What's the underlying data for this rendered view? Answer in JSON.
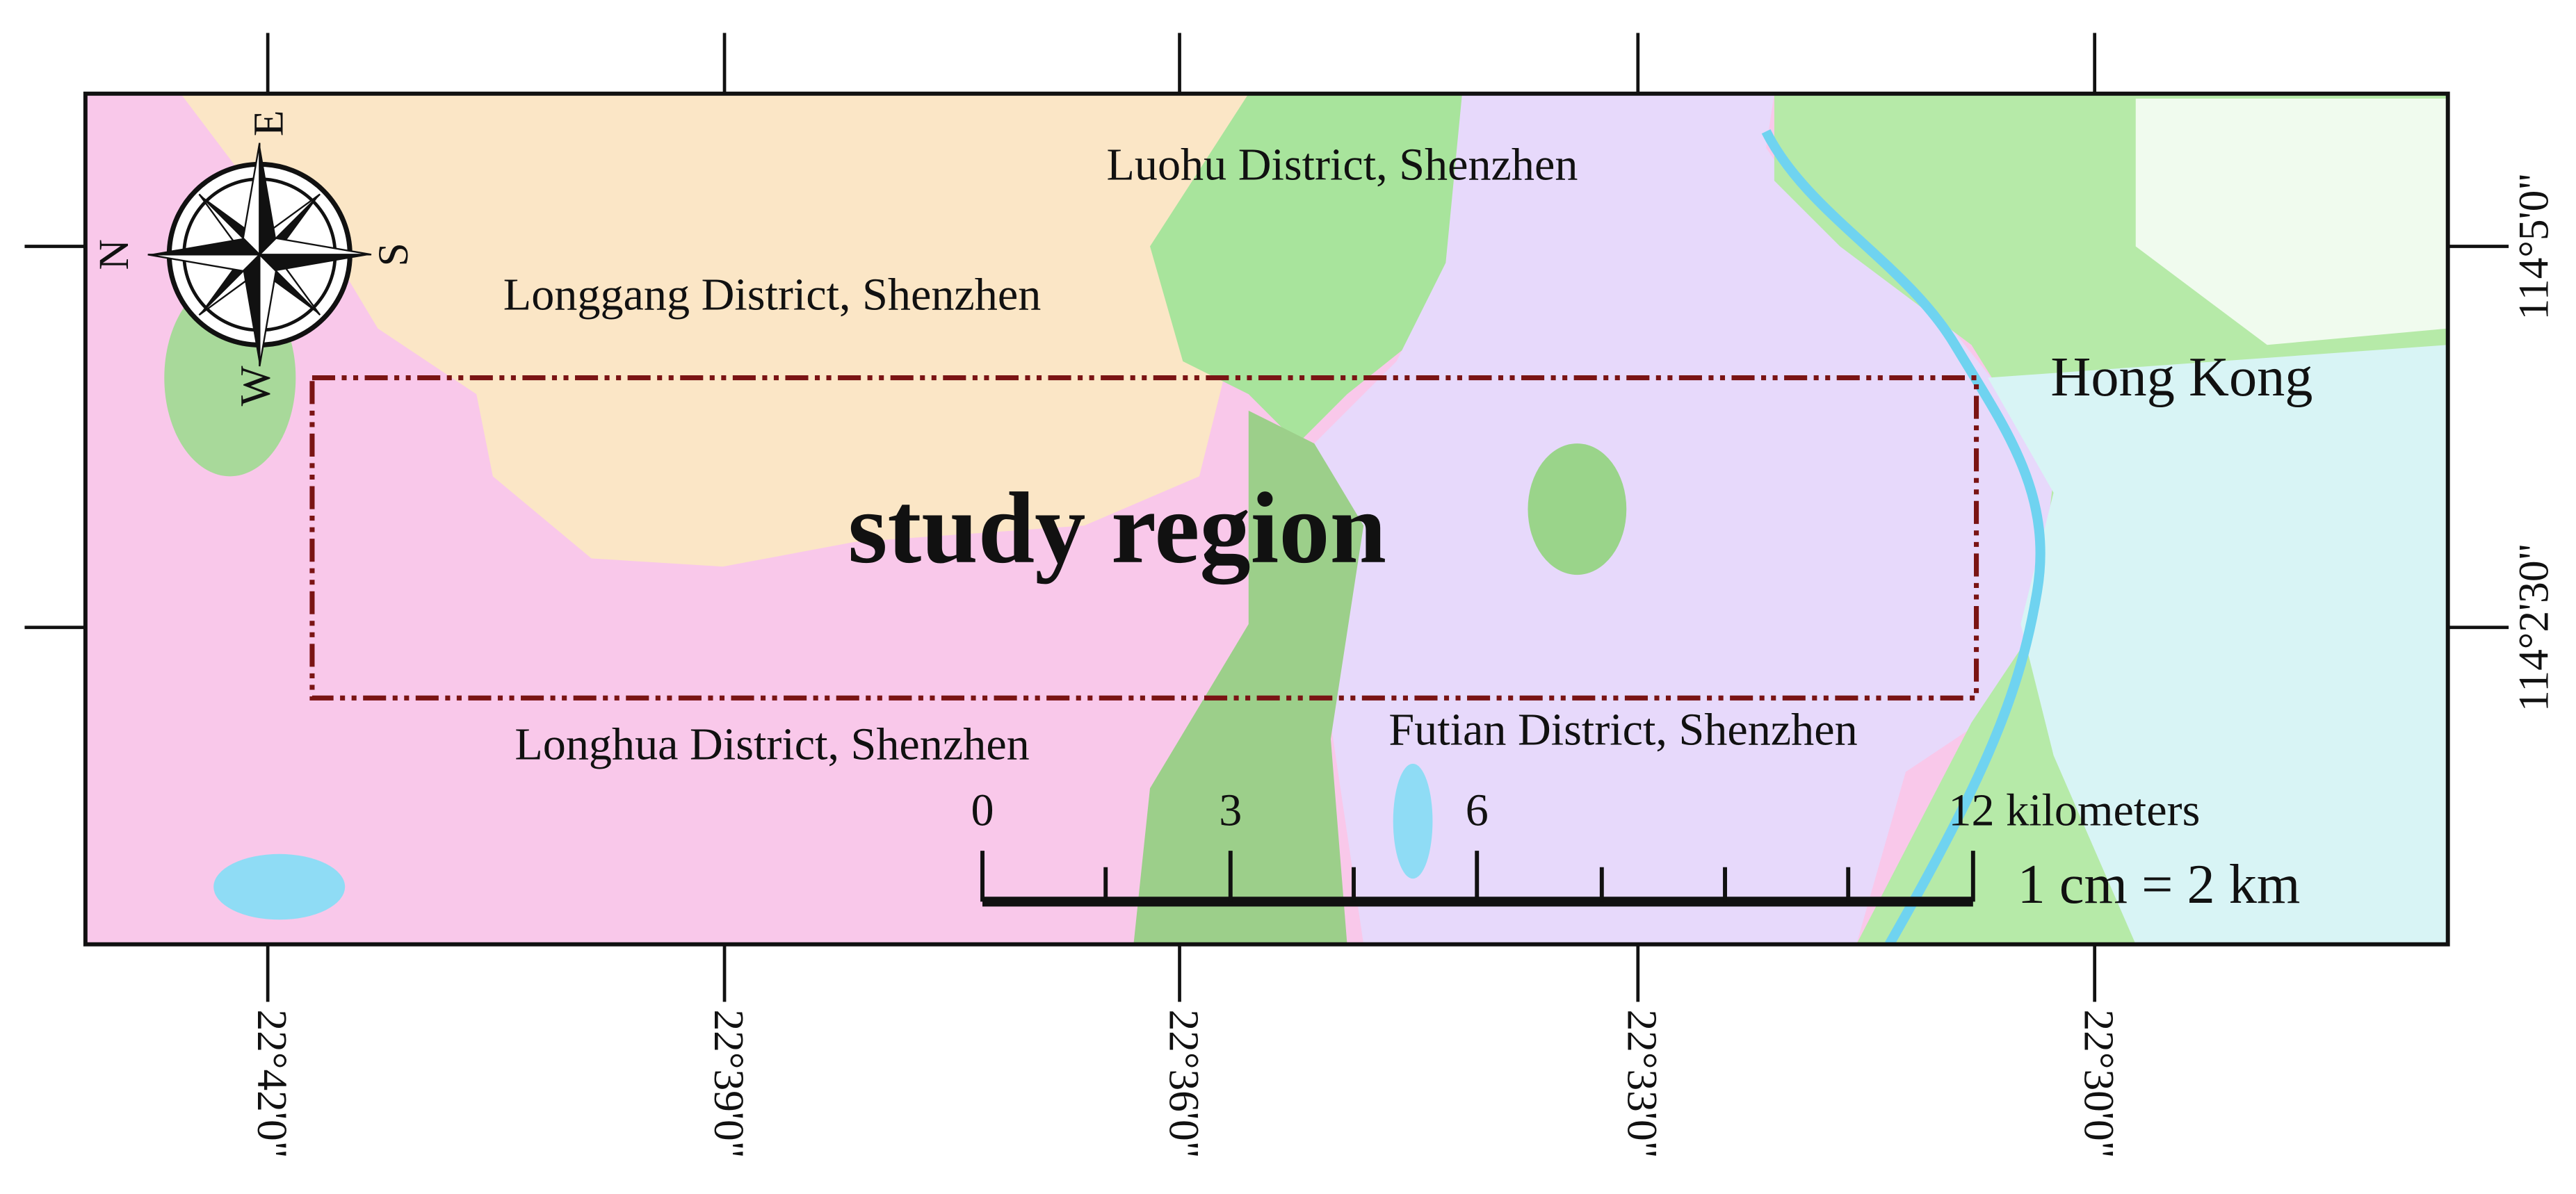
{
  "map": {
    "labels": {
      "luohu": "Luohu District, Shenzhen",
      "longgang": "Longgang District, Shenzhen",
      "hong_kong": "Hong Kong",
      "study_region": "study region",
      "longhua": "Longhua District, Shenzhen",
      "futian": "Futian District, Shenzhen"
    },
    "compass": {
      "n": "N",
      "e": "E",
      "s": "S",
      "w": "W"
    },
    "bottom_coordinates": [
      "22°42'0\"",
      "22°39'0\"",
      "22°36'0\"",
      "22°33'0\"",
      "22°30'0\""
    ],
    "right_coordinates": [
      "114°5'0\"",
      "114°2'30\""
    ],
    "scale_bar": {
      "ticks": [
        "0",
        "3",
        "6"
      ],
      "end": "12 kilometers",
      "ratio": "1 cm = 2 km"
    }
  }
}
